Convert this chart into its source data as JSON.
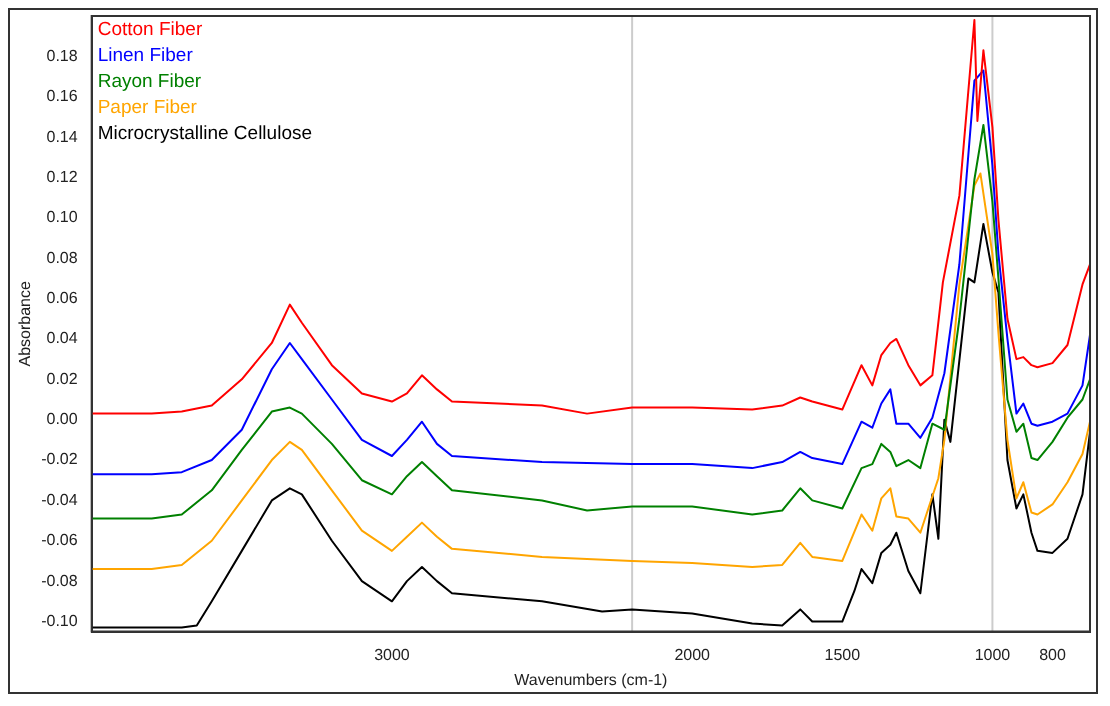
{
  "chart_data": {
    "type": "line",
    "xlabel": "Wavenumbers (cm-1)",
    "ylabel": "Absorbance",
    "xlim": [
      4000,
      675
    ],
    "xticks": [
      3000,
      2000,
      1500,
      1000,
      800
    ],
    "ylim": [
      -0.105,
      0.2
    ],
    "yticks": [
      {
        "value": -0.1,
        "label": "-0.10"
      },
      {
        "value": -0.08,
        "label": "-0.08"
      },
      {
        "value": -0.06,
        "label": "-0.06"
      },
      {
        "value": -0.04,
        "label": "-0.04"
      },
      {
        "value": -0.02,
        "label": "-0.02"
      },
      {
        "value": 0,
        "label": "0.00"
      },
      {
        "value": 0.02,
        "label": "0.02"
      },
      {
        "value": 0.04,
        "label": "0.04"
      },
      {
        "value": 0.06,
        "label": "0.06"
      },
      {
        "value": 0.08,
        "label": "0.08"
      },
      {
        "value": 0.1,
        "label": "0.10"
      },
      {
        "value": 0.12,
        "label": "0.12"
      },
      {
        "value": 0.14,
        "label": "0.14"
      },
      {
        "value": 0.16,
        "label": "0.16"
      },
      {
        "value": 0.18,
        "label": "0.18"
      }
    ],
    "ref_lines": [
      {
        "axis": "x",
        "value": 2200,
        "color": "#cccccc"
      },
      {
        "axis": "x",
        "value": 1000,
        "color": "#cccccc"
      }
    ],
    "grid": false,
    "legend": "top left",
    "marker": "none",
    "line_style": "solid",
    "series": [
      {
        "name": "Cotton Fiber",
        "color": "#ff0000",
        "x": [
          4000,
          3800,
          3700,
          3600,
          3500,
          3400,
          3340,
          3300,
          3200,
          3100,
          3000,
          2950,
          2900,
          2850,
          2800,
          2500,
          2350,
          2200,
          2000,
          1800,
          1700,
          1640,
          1600,
          1500,
          1436,
          1400,
          1370,
          1340,
          1320,
          1280,
          1240,
          1200,
          1165,
          1110,
          1060,
          1050,
          1030,
          1000,
          980,
          950,
          920,
          897,
          870,
          850,
          800,
          750,
          700,
          675
        ],
        "values": [
          0.003,
          0.003,
          0.004,
          0.007,
          0.02,
          0.038,
          0.057,
          0.048,
          0.027,
          0.013,
          0.009,
          0.013,
          0.022,
          0.015,
          0.009,
          0.007,
          0.003,
          0.006,
          0.006,
          0.005,
          0.007,
          0.011,
          0.009,
          0.005,
          0.027,
          0.017,
          0.032,
          0.038,
          0.04,
          0.027,
          0.017,
          0.022,
          0.068,
          0.111,
          0.198,
          0.148,
          0.183,
          0.145,
          0.099,
          0.05,
          0.03,
          0.031,
          0.027,
          0.026,
          0.028,
          0.037,
          0.067,
          0.077
        ]
      },
      {
        "name": "Linen Fiber",
        "color": "#0000ff",
        "x": [
          4000,
          3800,
          3700,
          3600,
          3500,
          3400,
          3340,
          3300,
          3200,
          3100,
          3000,
          2950,
          2900,
          2850,
          2800,
          2500,
          2200,
          2000,
          1800,
          1700,
          1640,
          1600,
          1500,
          1436,
          1400,
          1370,
          1340,
          1320,
          1280,
          1240,
          1200,
          1160,
          1110,
          1060,
          1030,
          1000,
          980,
          950,
          920,
          897,
          870,
          850,
          800,
          750,
          700,
          675
        ],
        "values": [
          -0.027,
          -0.027,
          -0.026,
          -0.02,
          -0.005,
          0.025,
          0.038,
          0.03,
          0.01,
          -0.01,
          -0.018,
          -0.01,
          -0.001,
          -0.012,
          -0.018,
          -0.021,
          -0.022,
          -0.022,
          -0.024,
          -0.021,
          -0.016,
          -0.019,
          -0.022,
          -0.001,
          -0.004,
          0.008,
          0.015,
          -0.002,
          -0.002,
          -0.009,
          0.001,
          0.023,
          0.077,
          0.168,
          0.173,
          0.126,
          0.082,
          0.04,
          0.003,
          0.008,
          -0.002,
          -0.003,
          -0.001,
          0.003,
          0.017,
          0.042
        ]
      },
      {
        "name": "Rayon Fiber",
        "color": "#008000",
        "x": [
          4000,
          3800,
          3700,
          3600,
          3500,
          3400,
          3340,
          3300,
          3200,
          3100,
          3000,
          2950,
          2900,
          2850,
          2800,
          2500,
          2350,
          2200,
          2000,
          1800,
          1700,
          1640,
          1600,
          1500,
          1436,
          1400,
          1370,
          1340,
          1320,
          1280,
          1240,
          1200,
          1160,
          1110,
          1060,
          1030,
          1000,
          980,
          950,
          920,
          897,
          870,
          850,
          800,
          750,
          700,
          675
        ],
        "values": [
          -0.049,
          -0.049,
          -0.047,
          -0.035,
          -0.015,
          0.004,
          0.006,
          0.003,
          -0.012,
          -0.03,
          -0.037,
          -0.028,
          -0.021,
          -0.028,
          -0.035,
          -0.04,
          -0.045,
          -0.043,
          -0.043,
          -0.047,
          -0.045,
          -0.034,
          -0.04,
          -0.044,
          -0.024,
          -0.022,
          -0.012,
          -0.016,
          -0.023,
          -0.02,
          -0.024,
          -0.002,
          -0.005,
          0.05,
          0.119,
          0.146,
          0.108,
          0.07,
          0.01,
          -0.006,
          -0.002,
          -0.019,
          -0.02,
          -0.011,
          0.001,
          0.01,
          0.02
        ]
      },
      {
        "name": "Paper Fiber",
        "color": "#ffa500",
        "x": [
          4000,
          3800,
          3700,
          3600,
          3500,
          3400,
          3340,
          3300,
          3200,
          3100,
          3000,
          2950,
          2900,
          2850,
          2800,
          2500,
          2200,
          2000,
          1800,
          1700,
          1640,
          1600,
          1500,
          1436,
          1400,
          1370,
          1340,
          1320,
          1280,
          1240,
          1180,
          1160,
          1110,
          1060,
          1040,
          1000,
          980,
          950,
          920,
          897,
          870,
          850,
          800,
          750,
          700,
          675
        ],
        "values": [
          -0.074,
          -0.074,
          -0.072,
          -0.06,
          -0.04,
          -0.02,
          -0.011,
          -0.015,
          -0.035,
          -0.055,
          -0.065,
          -0.058,
          -0.051,
          -0.058,
          -0.064,
          -0.068,
          -0.07,
          -0.071,
          -0.073,
          -0.072,
          -0.061,
          -0.068,
          -0.07,
          -0.047,
          -0.055,
          -0.039,
          -0.034,
          -0.048,
          -0.049,
          -0.056,
          -0.029,
          -0.01,
          0.067,
          0.116,
          0.122,
          0.082,
          0.043,
          -0.01,
          -0.039,
          -0.031,
          -0.046,
          -0.047,
          -0.042,
          -0.031,
          -0.017,
          -0.001
        ]
      },
      {
        "name": "Microcrystalline Cellulose",
        "color": "#000000",
        "x": [
          4000,
          3800,
          3700,
          3650,
          3600,
          3500,
          3400,
          3340,
          3300,
          3200,
          3100,
          3000,
          2950,
          2900,
          2850,
          2800,
          2500,
          2300,
          2200,
          2000,
          1800,
          1700,
          1640,
          1600,
          1500,
          1460,
          1436,
          1400,
          1370,
          1340,
          1320,
          1280,
          1240,
          1200,
          1180,
          1160,
          1140,
          1080,
          1060,
          1030,
          1000,
          980,
          950,
          920,
          897,
          870,
          850,
          800,
          750,
          700,
          675
        ],
        "values": [
          -0.103,
          -0.103,
          -0.103,
          -0.102,
          -0.09,
          -0.065,
          -0.04,
          -0.034,
          -0.037,
          -0.06,
          -0.08,
          -0.09,
          -0.08,
          -0.073,
          -0.08,
          -0.086,
          -0.09,
          -0.095,
          -0.094,
          -0.096,
          -0.101,
          -0.102,
          -0.094,
          -0.1,
          -0.1,
          -0.085,
          -0.074,
          -0.081,
          -0.066,
          -0.062,
          -0.056,
          -0.075,
          -0.086,
          -0.037,
          -0.059,
          0.0,
          -0.011,
          0.07,
          0.068,
          0.097,
          0.073,
          0.063,
          -0.02,
          -0.044,
          -0.037,
          -0.056,
          -0.065,
          -0.066,
          -0.059,
          -0.037,
          -0.006
        ]
      }
    ]
  }
}
